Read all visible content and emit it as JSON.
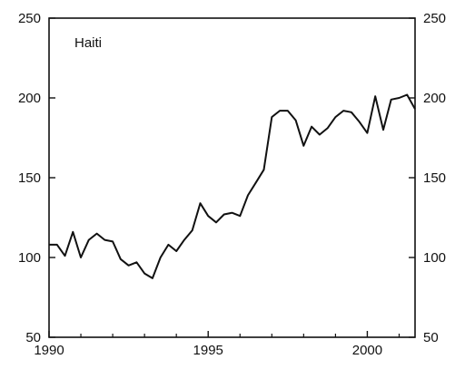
{
  "chart_data": {
    "type": "line",
    "title": "",
    "xlabel": "",
    "ylabel": "",
    "annotation": "Haiti",
    "xlim": [
      1990.0,
      2001.5
    ],
    "ylim": [
      50,
      250
    ],
    "x_ticks": [
      1990,
      1995,
      2000
    ],
    "x_tick_labels": [
      "1990",
      "1995",
      "2000"
    ],
    "y_ticks": [
      50,
      100,
      150,
      200,
      250
    ],
    "y_tick_labels": [
      "50",
      "100",
      "150",
      "200",
      "250"
    ],
    "right_axis_labels": true,
    "grid": false,
    "legend": "none",
    "line_color": "#111111",
    "series": [
      {
        "x": [
          1990.0,
          1990.25,
          1990.5,
          1990.75,
          1991.0,
          1991.25,
          1991.5,
          1991.75,
          1992.0,
          1992.25,
          1992.5,
          1992.75,
          1993.0,
          1993.25,
          1993.5,
          1993.75,
          1994.0,
          1994.25,
          1994.5,
          1994.75,
          1995.0,
          1995.25,
          1995.5,
          1995.75,
          1996.0,
          1996.25,
          1996.5,
          1996.75,
          1997.0,
          1997.25,
          1997.5,
          1997.75,
          1998.0,
          1998.25,
          1998.5,
          1998.75,
          1999.0,
          1999.25,
          1999.5,
          1999.75,
          2000.0,
          2000.25,
          2000.5,
          2000.75,
          2001.0,
          2001.25,
          2001.5
        ],
        "values": [
          108,
          108,
          101,
          116,
          100,
          111,
          115,
          111,
          110,
          99,
          95,
          97,
          90,
          87,
          100,
          108,
          104,
          111,
          117,
          134,
          126,
          122,
          127,
          128,
          126,
          139,
          147,
          155,
          188,
          192,
          192,
          186,
          170,
          182,
          177,
          181,
          188,
          192,
          191,
          185,
          178,
          201,
          180,
          199,
          200,
          202,
          193
        ]
      }
    ]
  }
}
